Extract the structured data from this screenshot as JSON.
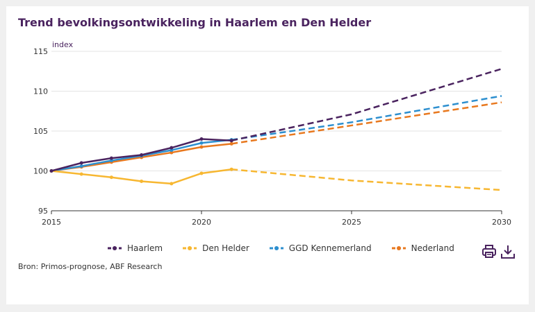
{
  "title": "Trend bevolkingsontwikkeling in Haarlem en Den Helder",
  "source": "Bron: Primos-prognose, ABF Research",
  "icons": {
    "print": "print-icon",
    "download": "download-icon"
  },
  "chart_data": {
    "type": "line",
    "ylabel": "index",
    "xlabel": "",
    "xlim": [
      2015,
      2030
    ],
    "ylim": [
      95,
      115
    ],
    "xticks": [
      "2015",
      "2020",
      "2025",
      "2030"
    ],
    "yticks": [
      "95",
      "100",
      "105",
      "110",
      "115"
    ],
    "grid": true,
    "legend_position": "bottom",
    "solid_until": 2021,
    "x": [
      2015,
      2016,
      2017,
      2018,
      2019,
      2020,
      2021,
      2025,
      2030
    ],
    "series": [
      {
        "name": "Haarlem",
        "color": "#4a235f",
        "values": [
          100,
          101.0,
          101.6,
          102.0,
          102.9,
          104.0,
          103.8,
          107.1,
          112.8
        ]
      },
      {
        "name": "Den Helder",
        "color": "#f7b731",
        "values": [
          100,
          99.6,
          99.2,
          98.7,
          98.4,
          99.7,
          100.2,
          98.8,
          97.6
        ]
      },
      {
        "name": "GGD Kennemerland",
        "color": "#2d8fcf",
        "values": [
          100,
          100.6,
          101.3,
          101.9,
          102.6,
          103.5,
          103.9,
          106.1,
          109.4
        ]
      },
      {
        "name": "Nederland",
        "color": "#e8781e",
        "values": [
          100,
          100.5,
          101.1,
          101.7,
          102.3,
          103.0,
          103.4,
          105.7,
          108.6
        ]
      }
    ]
  }
}
